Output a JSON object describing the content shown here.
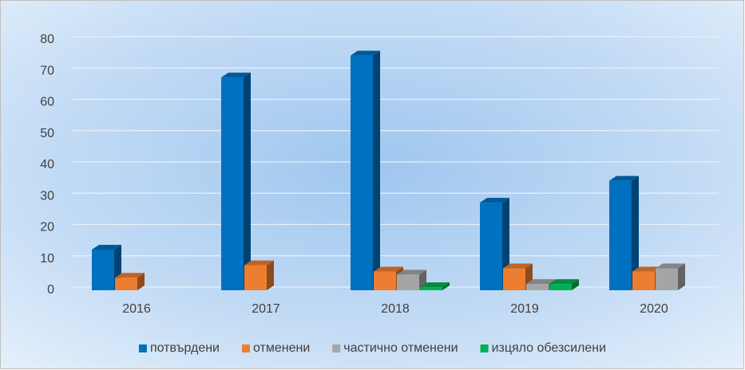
{
  "chart_data": {
    "type": "bar3d",
    "categories": [
      "2016",
      "2017",
      "2018",
      "2019",
      "2020"
    ],
    "series": [
      {
        "name": "потвърдени",
        "color": "#0070c0",
        "values": [
          13,
          68,
          75,
          28,
          35
        ]
      },
      {
        "name": "отменени",
        "color": "#ed7d31",
        "values": [
          4,
          8,
          6,
          7,
          6
        ]
      },
      {
        "name": "частично отменени",
        "color": "#a5a5a5",
        "values": [
          0,
          0,
          5,
          2,
          7
        ]
      },
      {
        "name": "изцяло обезсилени",
        "color": "#00b050",
        "values": [
          0,
          0,
          1,
          2,
          0
        ]
      }
    ],
    "ylim": [
      0,
      80
    ],
    "yticks": [
      0,
      10,
      20,
      30,
      40,
      50,
      60,
      70,
      80
    ],
    "grid": true,
    "legend": "bottom"
  }
}
